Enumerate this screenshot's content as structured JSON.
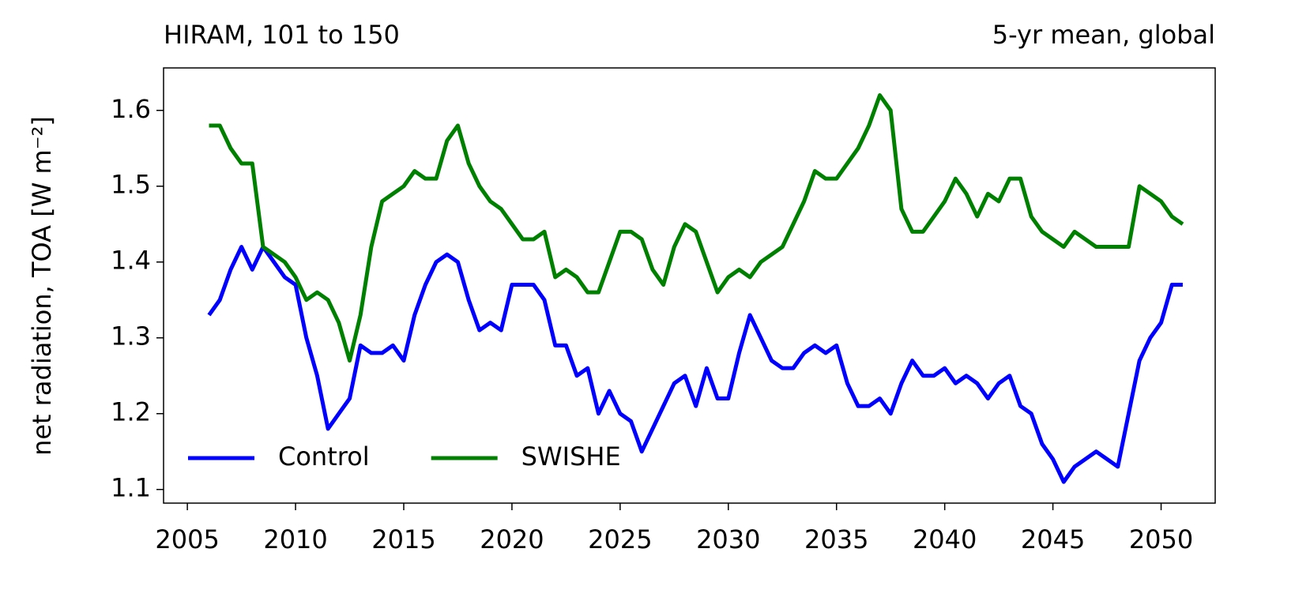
{
  "chart_data": {
    "type": "line",
    "title_left": "HIRAM, 101 to 150",
    "title_right": "5-yr mean, global",
    "ylabel": "net radiation, TOA [W m⁻²]",
    "xlim": [
      2003.9,
      2052.5
    ],
    "ylim": [
      1.082,
      1.656
    ],
    "xticks": [
      2005,
      2010,
      2015,
      2020,
      2025,
      2030,
      2035,
      2040,
      2045,
      2050
    ],
    "yticks": [
      1.1,
      1.2,
      1.3,
      1.4,
      1.5,
      1.6
    ],
    "legend": "lower left",
    "x": [
      2006,
      2006.5,
      2007,
      2007.5,
      2008,
      2008.5,
      2009,
      2009.5,
      2010,
      2010.5,
      2011,
      2011.5,
      2012,
      2012.5,
      2013,
      2013.5,
      2014,
      2014.5,
      2015,
      2015.5,
      2016,
      2016.5,
      2017,
      2017.5,
      2018,
      2018.5,
      2019,
      2019.5,
      2020,
      2020.5,
      2021,
      2021.5,
      2022,
      2022.5,
      2023,
      2023.5,
      2024,
      2024.5,
      2025,
      2025.5,
      2026,
      2026.5,
      2027,
      2027.5,
      2028,
      2028.5,
      2029,
      2029.5,
      2030,
      2030.5,
      2031,
      2031.5,
      2032,
      2032.5,
      2033,
      2033.5,
      2034,
      2034.5,
      2035,
      2035.5,
      2036,
      2036.5,
      2037,
      2037.5,
      2038,
      2038.5,
      2039,
      2039.5,
      2040,
      2040.5,
      2041,
      2041.5,
      2042,
      2042.5,
      2043,
      2043.5,
      2044,
      2044.5,
      2045,
      2045.5,
      2046,
      2046.5,
      2047,
      2047.5,
      2048,
      2048.5,
      2049,
      2049.5,
      2050,
      2050.5,
      2051
    ],
    "series": [
      {
        "name": "Control",
        "color": "#0000ff",
        "values": [
          1.33,
          1.35,
          1.39,
          1.42,
          1.39,
          1.42,
          1.4,
          1.38,
          1.37,
          1.3,
          1.25,
          1.18,
          1.2,
          1.22,
          1.29,
          1.28,
          1.28,
          1.29,
          1.27,
          1.33,
          1.37,
          1.4,
          1.41,
          1.4,
          1.35,
          1.31,
          1.32,
          1.31,
          1.37,
          1.37,
          1.37,
          1.35,
          1.29,
          1.29,
          1.25,
          1.26,
          1.2,
          1.23,
          1.2,
          1.19,
          1.15,
          1.18,
          1.21,
          1.24,
          1.25,
          1.21,
          1.26,
          1.22,
          1.22,
          1.28,
          1.33,
          1.3,
          1.27,
          1.26,
          1.26,
          1.28,
          1.29,
          1.28,
          1.29,
          1.24,
          1.21,
          1.21,
          1.22,
          1.2,
          1.24,
          1.27,
          1.25,
          1.25,
          1.26,
          1.24,
          1.25,
          1.24,
          1.22,
          1.24,
          1.25,
          1.21,
          1.2,
          1.16,
          1.14,
          1.11,
          1.13,
          1.14,
          1.15,
          1.14,
          1.13,
          1.2,
          1.27,
          1.3,
          1.32,
          1.37,
          1.37
        ]
      },
      {
        "name": "SWISHE",
        "color": "#008000",
        "values": [
          1.58,
          1.58,
          1.55,
          1.53,
          1.53,
          1.42,
          1.41,
          1.4,
          1.38,
          1.35,
          1.36,
          1.35,
          1.32,
          1.27,
          1.33,
          1.42,
          1.48,
          1.49,
          1.5,
          1.52,
          1.51,
          1.51,
          1.56,
          1.58,
          1.53,
          1.5,
          1.48,
          1.47,
          1.45,
          1.43,
          1.43,
          1.44,
          1.38,
          1.39,
          1.38,
          1.36,
          1.36,
          1.4,
          1.44,
          1.44,
          1.43,
          1.39,
          1.37,
          1.42,
          1.45,
          1.44,
          1.4,
          1.36,
          1.38,
          1.39,
          1.38,
          1.4,
          1.41,
          1.42,
          1.45,
          1.48,
          1.52,
          1.51,
          1.51,
          1.53,
          1.55,
          1.58,
          1.62,
          1.6,
          1.47,
          1.44,
          1.44,
          1.46,
          1.48,
          1.51,
          1.49,
          1.46,
          1.49,
          1.48,
          1.51,
          1.51,
          1.46,
          1.44,
          1.43,
          1.42,
          1.44,
          1.43,
          1.42,
          1.42,
          1.42,
          1.42,
          1.5,
          1.49,
          1.48,
          1.46,
          1.45
        ]
      }
    ]
  }
}
